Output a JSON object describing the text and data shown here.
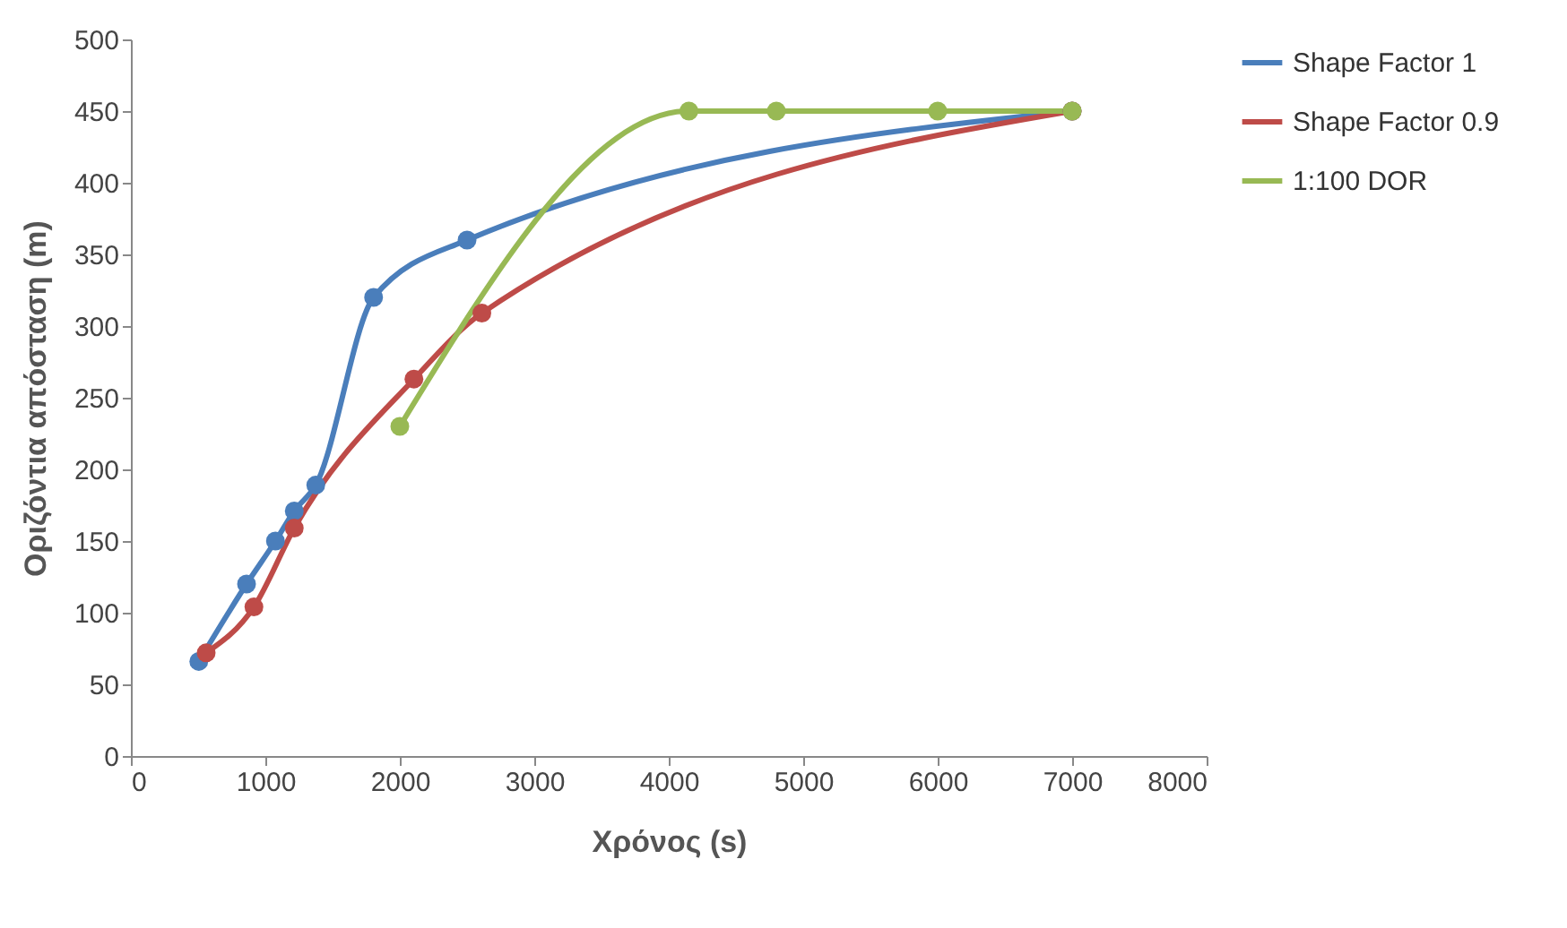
{
  "chart_data": {
    "type": "line",
    "xlabel": "Χρόνος (s)",
    "ylabel": "Οριζόντια απόσταση (m)",
    "xlim": [
      0,
      8000
    ],
    "xticks": [
      0,
      1000,
      2000,
      3000,
      4000,
      5000,
      6000,
      7000,
      8000
    ],
    "ylim": [
      0,
      500
    ],
    "yticks": [
      0,
      50,
      100,
      150,
      200,
      250,
      300,
      350,
      400,
      450,
      500
    ],
    "grid": false,
    "legend": "right",
    "marker": "circle",
    "line_style": "solid",
    "series": [
      {
        "name": "Shape Factor 1",
        "color": "#4a7ebb",
        "x": [
          505,
          860,
          1075,
          1215,
          1375,
          1805,
          2500,
          7000
        ],
        "values": [
          66,
          120,
          150,
          171,
          189,
          320,
          360,
          450
        ]
      },
      {
        "name": "Shape Factor 0.9",
        "color": "#be4b48",
        "x": [
          560,
          915,
          1215,
          2105,
          2610,
          7000
        ],
        "values": [
          72,
          104,
          159,
          263,
          309,
          450
        ]
      },
      {
        "name": "1:100 DOR",
        "color": "#98b954",
        "x": [
          2000,
          4150,
          4800,
          6000,
          7000
        ],
        "values": [
          230,
          450,
          450,
          450,
          450
        ]
      }
    ]
  }
}
